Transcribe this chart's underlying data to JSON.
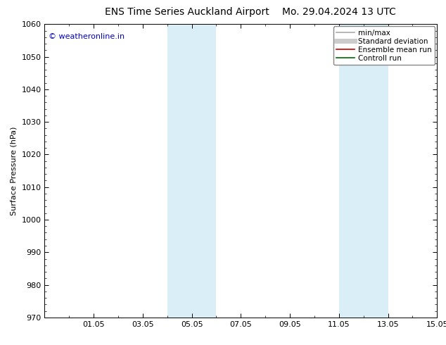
{
  "title": "ENS Time Series Auckland Airport",
  "title2": "Mo. 29.04.2024 13 UTC",
  "ylabel": "Surface Pressure (hPa)",
  "ylim": [
    970,
    1060
  ],
  "yticks": [
    970,
    980,
    990,
    1000,
    1010,
    1020,
    1030,
    1040,
    1050,
    1060
  ],
  "xlim": [
    0,
    16
  ],
  "xtick_labels": [
    "01.05",
    "03.05",
    "05.05",
    "07.05",
    "09.05",
    "11.05",
    "13.05",
    "15.05"
  ],
  "xtick_positions": [
    2,
    4,
    6,
    8,
    10,
    12,
    14,
    16
  ],
  "shaded_bands": [
    {
      "x_start": 5,
      "x_end": 7,
      "color": "#daeef8"
    },
    {
      "x_start": 12,
      "x_end": 14,
      "color": "#daeef8"
    }
  ],
  "watermark_text": "© weatheronline.in",
  "watermark_color": "#0000cc",
  "legend_items": [
    {
      "label": "min/max",
      "color": "#aaaaaa",
      "lw": 1.2
    },
    {
      "label": "Standard deviation",
      "color": "#cccccc",
      "lw": 5
    },
    {
      "label": "Ensemble mean run",
      "color": "#cc0000",
      "lw": 1.2
    },
    {
      "label": "Controll run",
      "color": "#006600",
      "lw": 1.2
    }
  ],
  "bg_color": "#ffffff",
  "plot_bg_color": "#ffffff",
  "tick_color": "#000000",
  "spine_color": "#000000",
  "font_size": 8,
  "title_font_size": 10
}
